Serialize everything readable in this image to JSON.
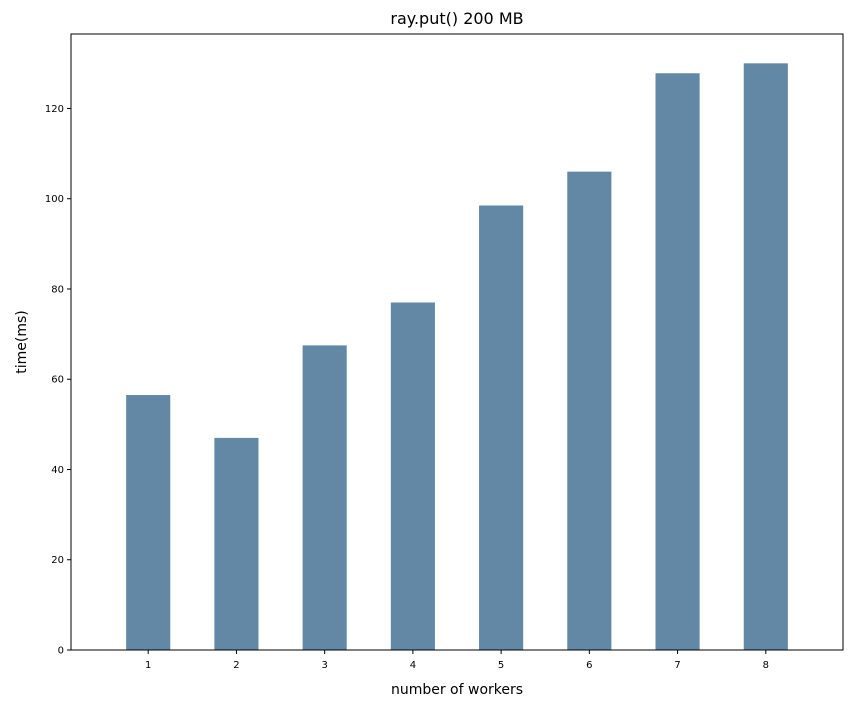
{
  "chart_data": {
    "type": "bar",
    "title": "ray.put() 200 MB",
    "xlabel": "number of workers",
    "ylabel": "time(ms)",
    "categories": [
      "1",
      "2",
      "3",
      "4",
      "5",
      "6",
      "7",
      "8"
    ],
    "values": [
      56.5,
      47.0,
      67.5,
      77.0,
      98.5,
      106.0,
      127.8,
      130.0
    ],
    "ylim": [
      0,
      136.5
    ],
    "yticks": [
      0,
      20,
      40,
      60,
      80,
      100,
      120
    ],
    "grid": false,
    "legend": "none",
    "bar_color": "#6388a5"
  }
}
